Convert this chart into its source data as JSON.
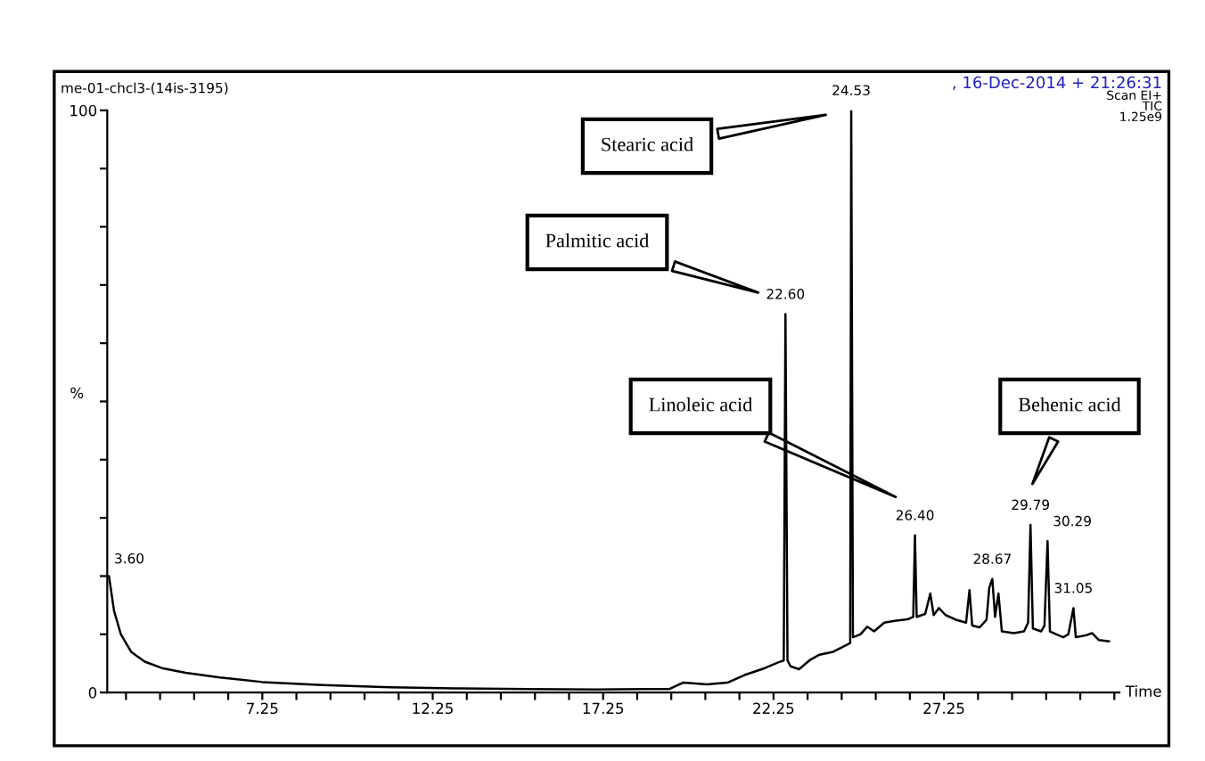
{
  "chart_data": {
    "type": "line",
    "xlabel": "Time",
    "ylabel": "%",
    "x": [
      2.75,
      2.9,
      3.1,
      3.4,
      3.8,
      4.3,
      5.0,
      6.0,
      7.25,
      9,
      11,
      13,
      15,
      17,
      18.5,
      19.2,
      19.6,
      20.3,
      20.9,
      21.4,
      22.0,
      22.4,
      22.55,
      22.6,
      22.66,
      22.75,
      23.0,
      23.3,
      23.6,
      24.0,
      24.4,
      24.5,
      24.53,
      24.58,
      24.8,
      25.0,
      25.2,
      25.5,
      25.8,
      26.2,
      26.35,
      26.4,
      26.45,
      26.7,
      26.85,
      26.95,
      27.1,
      27.3,
      27.6,
      27.9,
      28.0,
      28.08,
      28.3,
      28.5,
      28.58,
      28.67,
      28.75,
      28.85,
      28.95,
      29.3,
      29.6,
      29.72,
      29.79,
      29.86,
      30.1,
      30.2,
      30.29,
      30.36,
      30.55,
      30.75,
      30.9,
      31.05,
      31.12,
      31.4,
      31.6,
      31.8,
      32.1
    ],
    "series": [
      {
        "color": "#000000",
        "values": [
          20,
          14,
          10,
          7,
          5.3,
          4.2,
          3.4,
          2.6,
          1.8,
          1.3,
          0.9,
          0.7,
          0.6,
          0.5,
          0.6,
          0.6,
          1.7,
          1.4,
          1.7,
          3,
          4.2,
          5.2,
          5.5,
          65,
          5.5,
          4.5,
          4,
          5.5,
          6.5,
          7,
          8.2,
          8.5,
          100,
          9.5,
          10,
          11.3,
          10.5,
          12,
          12.3,
          12.6,
          13,
          27,
          13,
          13.5,
          17,
          13.3,
          14.5,
          13.3,
          12.5,
          12,
          17.6,
          11.5,
          11.2,
          12.5,
          18,
          19.5,
          13,
          17,
          10.5,
          10.2,
          10.5,
          12,
          28.8,
          11,
          10.5,
          11.5,
          26,
          10.5,
          10,
          9.5,
          10,
          14.5,
          9.5,
          9.8,
          10.2,
          9,
          8.8
        ]
      }
    ],
    "xlim": [
      2.7,
      32.4
    ],
    "ylim": [
      0,
      100
    ],
    "xticks": [
      {
        "value": 3.25,
        "label": null
      },
      {
        "value": 4.25,
        "label": null
      },
      {
        "value": 5.25,
        "label": null
      },
      {
        "value": 6.25,
        "label": null
      },
      {
        "value": 7.25,
        "label": "7.25"
      },
      {
        "value": 8.25,
        "label": null
      },
      {
        "value": 9.25,
        "label": null
      },
      {
        "value": 10.25,
        "label": null
      },
      {
        "value": 11.25,
        "label": null
      },
      {
        "value": 12.25,
        "label": "12.25"
      },
      {
        "value": 13.25,
        "label": null
      },
      {
        "value": 14.25,
        "label": null
      },
      {
        "value": 15.25,
        "label": null
      },
      {
        "value": 16.25,
        "label": null
      },
      {
        "value": 17.25,
        "label": "17.25"
      },
      {
        "value": 18.25,
        "label": null
      },
      {
        "value": 19.25,
        "label": null
      },
      {
        "value": 20.25,
        "label": null
      },
      {
        "value": 21.25,
        "label": null
      },
      {
        "value": 22.25,
        "label": "22.25"
      },
      {
        "value": 23.25,
        "label": null
      },
      {
        "value": 24.25,
        "label": null
      },
      {
        "value": 25.25,
        "label": null
      },
      {
        "value": 26.25,
        "label": null
      },
      {
        "value": 27.25,
        "label": "27.25"
      },
      {
        "value": 28.25,
        "label": null
      },
      {
        "value": 29.25,
        "label": null
      },
      {
        "value": 30.25,
        "label": null
      },
      {
        "value": 31.25,
        "label": null
      },
      {
        "value": 32.25,
        "label": null
      }
    ],
    "yticks": [
      0,
      {
        "value": 10,
        "label": null
      },
      {
        "value": 20,
        "label": null
      },
      {
        "value": 30,
        "label": null
      },
      {
        "value": 40,
        "label": null
      },
      {
        "value": 50,
        "label": null
      },
      {
        "value": 60,
        "label": null
      },
      {
        "value": 70,
        "label": null
      },
      {
        "value": 80,
        "label": null
      },
      {
        "value": 90,
        "label": null
      },
      100
    ],
    "grid": false,
    "legend": false,
    "marker": "none",
    "line_style": "solid",
    "annotations": [
      "me-01-chcl3-(14is-3195)",
      ", 16-Dec-2014 + 21:26:31",
      "Scan EI+",
      "TIC",
      "1.25e9",
      "3.60",
      {
        "text": "22.60",
        "x": 22.6,
        "y": 65
      },
      {
        "text": "24.53",
        "x": 24.53,
        "y": 100
      },
      {
        "text": "26.40",
        "x": 26.4,
        "y": 27
      },
      {
        "text": "28.67",
        "x": 28.67,
        "y": 19.5
      },
      {
        "text": "29.79",
        "x": 29.79,
        "y": 28.8
      },
      {
        "text": "30.29",
        "x": 30.29,
        "y": 26
      },
      {
        "text": "31.05",
        "x": 31.05,
        "y": 14.5
      },
      "Stearic acid",
      "Palmitic acid",
      "Linoleic acid",
      "Behenic acid"
    ]
  }
}
